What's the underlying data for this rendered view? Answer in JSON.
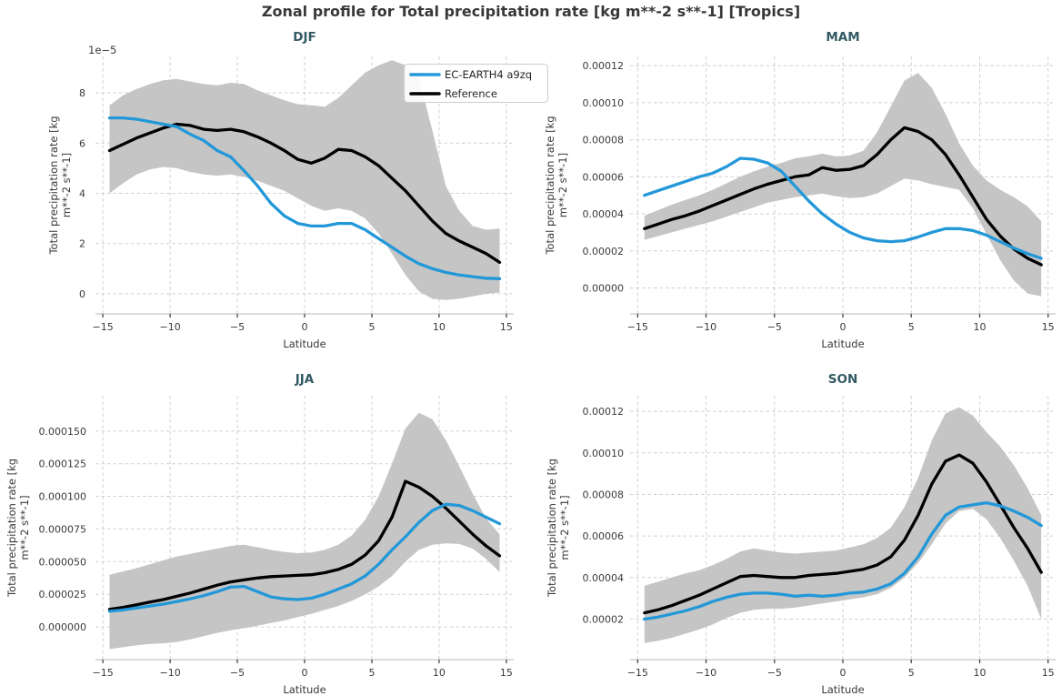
{
  "figure": {
    "suptitle": "Zonal profile for Total precipitation rate [kg m**-2 s**-1] [Tropics]"
  },
  "colors": {
    "model_blue": "#2398d8",
    "reference_black": "#000000",
    "uncertainty_band": "#c5c5c5",
    "panel_title_teal": "#335a63",
    "text": "#3a3a3a",
    "grid": "#cfcfcf",
    "spine": "#c8c8c8",
    "tick": "#333333",
    "background": "#ffffff"
  },
  "legend": {
    "entries": [
      {
        "label": "EC-EARTH4 a9zq",
        "color": "#2398d8"
      },
      {
        "label": "Reference",
        "color": "#000000"
      }
    ]
  },
  "chart_data": {
    "type": "line",
    "title": "Zonal profile for Total precipitation rate [kg m**-2 s**-1] [Tropics]",
    "xlabel": "Latitude",
    "ylabel_lines": [
      "Total precipitation rate [kg",
      "m**-2 s**-1]"
    ],
    "legend_position": "upper right of DJF panel",
    "grid": "dashed",
    "series_units_factor": "1e-5 kg m**-2 s**-1",
    "xlim": [
      -15.55,
      15.55
    ],
    "xticks": [
      -15,
      -10,
      -5,
      0,
      5,
      10,
      15
    ],
    "xtick_labels": [
      "−15",
      "−10",
      "−5",
      "0",
      "5",
      "10",
      "15"
    ],
    "x": [
      -14.5,
      -13.5,
      -12.5,
      -11.5,
      -10.5,
      -9.5,
      -8.5,
      -7.5,
      -6.5,
      -5.5,
      -4.5,
      -3.5,
      -2.5,
      -1.5,
      -0.5,
      0.5,
      1.5,
      2.5,
      3.5,
      4.5,
      5.5,
      6.5,
      7.5,
      8.5,
      9.5,
      10.5,
      11.5,
      12.5,
      13.5,
      14.5
    ],
    "panels": [
      {
        "title": "DJF",
        "offset_text": "1e−5",
        "ylim": [
          -0.8,
          9.45
        ],
        "yticks": [
          0,
          2,
          4,
          6,
          8
        ],
        "ytick_labels": [
          "0",
          "2",
          "4",
          "6",
          "8"
        ],
        "model": [
          7.0,
          7.0,
          6.95,
          6.85,
          6.75,
          6.65,
          6.35,
          6.1,
          5.7,
          5.45,
          4.9,
          4.3,
          3.6,
          3.1,
          2.8,
          2.7,
          2.7,
          2.8,
          2.8,
          2.55,
          2.2,
          1.85,
          1.5,
          1.2,
          1.0,
          0.85,
          0.75,
          0.68,
          0.62,
          0.6
        ],
        "reference": [
          5.7,
          5.95,
          6.2,
          6.4,
          6.6,
          6.75,
          6.7,
          6.55,
          6.5,
          6.55,
          6.45,
          6.25,
          6.0,
          5.7,
          5.35,
          5.2,
          5.4,
          5.75,
          5.7,
          5.45,
          5.1,
          4.6,
          4.1,
          3.5,
          2.9,
          2.4,
          2.1,
          1.85,
          1.6,
          1.25
        ],
        "band_lower": [
          4.0,
          4.4,
          4.75,
          4.95,
          5.05,
          5.0,
          4.85,
          4.75,
          4.7,
          4.75,
          4.65,
          4.5,
          4.3,
          4.1,
          3.8,
          3.5,
          3.3,
          3.4,
          3.3,
          3.0,
          2.4,
          1.6,
          0.75,
          0.1,
          -0.2,
          -0.25,
          -0.2,
          -0.1,
          0.0,
          0.05
        ],
        "band_upper": [
          7.5,
          7.9,
          8.15,
          8.35,
          8.5,
          8.55,
          8.45,
          8.35,
          8.3,
          8.4,
          8.35,
          8.1,
          7.9,
          7.7,
          7.55,
          7.5,
          7.45,
          7.8,
          8.3,
          8.8,
          9.1,
          9.3,
          9.1,
          8.6,
          6.5,
          4.3,
          3.3,
          2.7,
          2.55,
          2.6
        ]
      },
      {
        "title": "MAM",
        "offset_text": null,
        "ylim": [
          -1.4,
          12.5
        ],
        "yticks": [
          0,
          2,
          4,
          6,
          8,
          10,
          12
        ],
        "ytick_labels": [
          "0.00000",
          "0.00002",
          "0.00004",
          "0.00006",
          "0.00008",
          "0.00010",
          "0.00012"
        ],
        "model": [
          5.0,
          5.25,
          5.5,
          5.75,
          6.0,
          6.2,
          6.55,
          7.0,
          6.95,
          6.75,
          6.3,
          5.5,
          4.7,
          4.0,
          3.45,
          3.0,
          2.7,
          2.55,
          2.5,
          2.55,
          2.75,
          3.0,
          3.2,
          3.2,
          3.1,
          2.85,
          2.5,
          2.15,
          1.85,
          1.6
        ],
        "reference": [
          3.2,
          3.45,
          3.7,
          3.9,
          4.15,
          4.45,
          4.75,
          5.05,
          5.35,
          5.6,
          5.8,
          6.0,
          6.1,
          6.5,
          6.35,
          6.4,
          6.6,
          7.2,
          8.0,
          8.65,
          8.45,
          8.0,
          7.2,
          6.1,
          4.9,
          3.7,
          2.8,
          2.1,
          1.6,
          1.25
        ],
        "band_lower": [
          2.6,
          2.8,
          3.0,
          3.2,
          3.4,
          3.6,
          3.85,
          4.1,
          4.35,
          4.6,
          4.75,
          4.9,
          5.0,
          5.1,
          4.95,
          4.85,
          4.9,
          5.1,
          5.5,
          5.9,
          5.8,
          5.6,
          5.45,
          5.3,
          4.3,
          2.9,
          1.5,
          0.4,
          -0.3,
          -0.45
        ],
        "band_upper": [
          3.9,
          4.2,
          4.5,
          4.75,
          5.0,
          5.3,
          5.65,
          6.0,
          6.3,
          6.55,
          6.75,
          7.0,
          7.1,
          7.25,
          7.1,
          7.15,
          7.4,
          8.4,
          9.8,
          11.2,
          11.6,
          10.8,
          9.4,
          7.8,
          6.6,
          5.8,
          5.3,
          4.9,
          4.4,
          3.6
        ]
      },
      {
        "title": "JJA",
        "offset_text": null,
        "ylim": [
          -2.5,
          17.7
        ],
        "yticks": [
          0,
          2.5,
          5,
          7.5,
          10,
          12.5,
          15
        ],
        "ytick_labels": [
          "0.000000",
          "0.000025",
          "0.000050",
          "0.000075",
          "0.000100",
          "0.000125",
          "0.000150"
        ],
        "model": [
          1.2,
          1.3,
          1.45,
          1.6,
          1.75,
          1.95,
          2.15,
          2.4,
          2.7,
          3.05,
          3.1,
          2.7,
          2.3,
          2.15,
          2.1,
          2.2,
          2.5,
          2.9,
          3.3,
          3.9,
          4.8,
          5.9,
          6.9,
          8.0,
          8.9,
          9.4,
          9.3,
          8.9,
          8.4,
          7.9
        ],
        "reference": [
          1.35,
          1.5,
          1.7,
          1.9,
          2.1,
          2.35,
          2.6,
          2.9,
          3.2,
          3.45,
          3.6,
          3.75,
          3.85,
          3.9,
          3.95,
          4.0,
          4.15,
          4.4,
          4.8,
          5.5,
          6.6,
          8.4,
          11.15,
          10.7,
          10.0,
          9.1,
          8.1,
          7.1,
          6.2,
          5.45
        ],
        "band_lower": [
          -1.7,
          -1.55,
          -1.4,
          -1.3,
          -1.25,
          -1.15,
          -0.95,
          -0.7,
          -0.45,
          -0.25,
          -0.1,
          0.1,
          0.3,
          0.5,
          0.75,
          1.0,
          1.3,
          1.6,
          2.0,
          2.5,
          3.1,
          3.9,
          5.0,
          5.9,
          6.3,
          6.4,
          6.35,
          6.0,
          5.2,
          4.2
        ],
        "band_upper": [
          4.0,
          4.25,
          4.5,
          4.8,
          5.1,
          5.4,
          5.6,
          5.8,
          6.0,
          6.2,
          6.3,
          6.1,
          5.9,
          5.75,
          5.65,
          5.7,
          5.9,
          6.3,
          7.0,
          8.2,
          10.0,
          12.5,
          15.2,
          16.4,
          15.9,
          14.3,
          12.3,
          10.2,
          8.3,
          7.1
        ]
      },
      {
        "title": "SON",
        "offset_text": null,
        "ylim": [
          0.05,
          12.75
        ],
        "yticks": [
          2,
          4,
          6,
          8,
          10,
          12
        ],
        "ytick_labels": [
          "0.00002",
          "0.00004",
          "0.00006",
          "0.00008",
          "0.00010",
          "0.00012"
        ],
        "model": [
          2.0,
          2.1,
          2.25,
          2.4,
          2.6,
          2.85,
          3.05,
          3.2,
          3.25,
          3.25,
          3.2,
          3.1,
          3.15,
          3.1,
          3.15,
          3.25,
          3.3,
          3.45,
          3.7,
          4.2,
          5.0,
          6.1,
          7.0,
          7.4,
          7.5,
          7.6,
          7.45,
          7.2,
          6.9,
          6.5
        ],
        "reference": [
          2.3,
          2.45,
          2.65,
          2.9,
          3.15,
          3.45,
          3.75,
          4.05,
          4.1,
          4.05,
          4.0,
          4.0,
          4.1,
          4.15,
          4.2,
          4.3,
          4.4,
          4.6,
          5.0,
          5.8,
          7.0,
          8.5,
          9.6,
          9.9,
          9.5,
          8.6,
          7.5,
          6.4,
          5.4,
          4.25
        ],
        "band_lower": [
          0.85,
          0.95,
          1.1,
          1.3,
          1.5,
          1.75,
          2.05,
          2.3,
          2.45,
          2.5,
          2.5,
          2.55,
          2.65,
          2.75,
          2.85,
          2.95,
          3.05,
          3.2,
          3.5,
          4.0,
          4.7,
          5.6,
          6.6,
          7.2,
          7.3,
          6.8,
          5.9,
          4.8,
          3.6,
          2.0
        ],
        "band_upper": [
          3.6,
          3.8,
          4.0,
          4.2,
          4.35,
          4.6,
          4.9,
          5.25,
          5.4,
          5.3,
          5.2,
          5.15,
          5.2,
          5.25,
          5.3,
          5.45,
          5.6,
          5.9,
          6.4,
          7.4,
          8.8,
          10.6,
          11.9,
          12.2,
          11.8,
          11.0,
          10.3,
          9.4,
          8.3,
          7.0
        ]
      }
    ]
  }
}
